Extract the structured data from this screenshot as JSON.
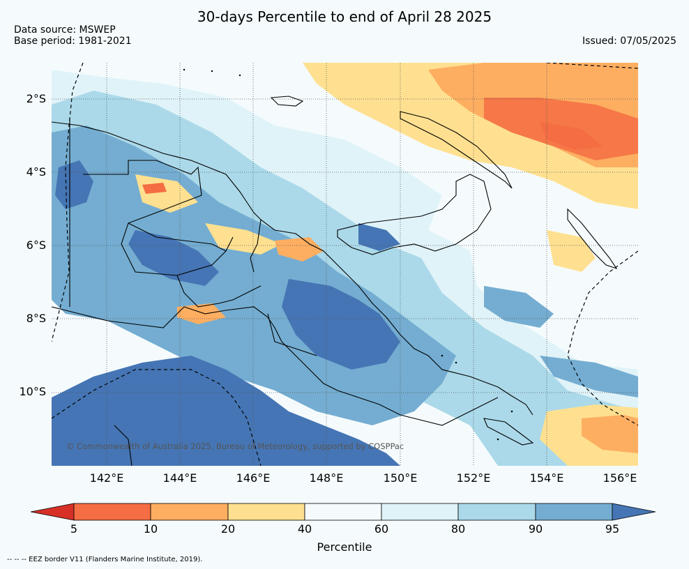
{
  "header": {
    "title": "30-days Percentile to end of April 28 2025",
    "data_source": "Data source: MSWEP",
    "base_period": "Base period: 1981-2021",
    "issued": "Issued: 07/05/2025"
  },
  "map": {
    "lat_labels": [
      "2°S",
      "4°S",
      "6°S",
      "8°S",
      "10°S"
    ],
    "lon_labels": [
      "142°E",
      "144°E",
      "146°E",
      "148°E",
      "150°E",
      "152°E",
      "154°E",
      "156°E"
    ],
    "copyright": "© Commonwealth of Australia 2025, Bureau of Meteorology, supported by COSPPac",
    "bounds": {
      "lon": [
        140.4,
        156.4
      ],
      "lat": [
        -1.0,
        -12.0
      ]
    },
    "background_color": "#f5fbfd"
  },
  "colorbar": {
    "label": "Percentile",
    "ticks": [
      "5",
      "10",
      "20",
      "40",
      "60",
      "80",
      "90",
      "95"
    ],
    "colors": {
      "below_5": "#d73027",
      "p5_10": "#f46d43",
      "p10_20": "#fdae61",
      "p20_40": "#fee090",
      "p40_60": "#f5fbfd",
      "p60_80": "#e0f3f8",
      "p80_90": "#abd9e9",
      "p90_95": "#74add1",
      "above_95": "#4575b4"
    }
  },
  "footer": {
    "legend_note": "--  --  -- EEZ border V11 (Flanders Marine Institute, 2019)."
  }
}
